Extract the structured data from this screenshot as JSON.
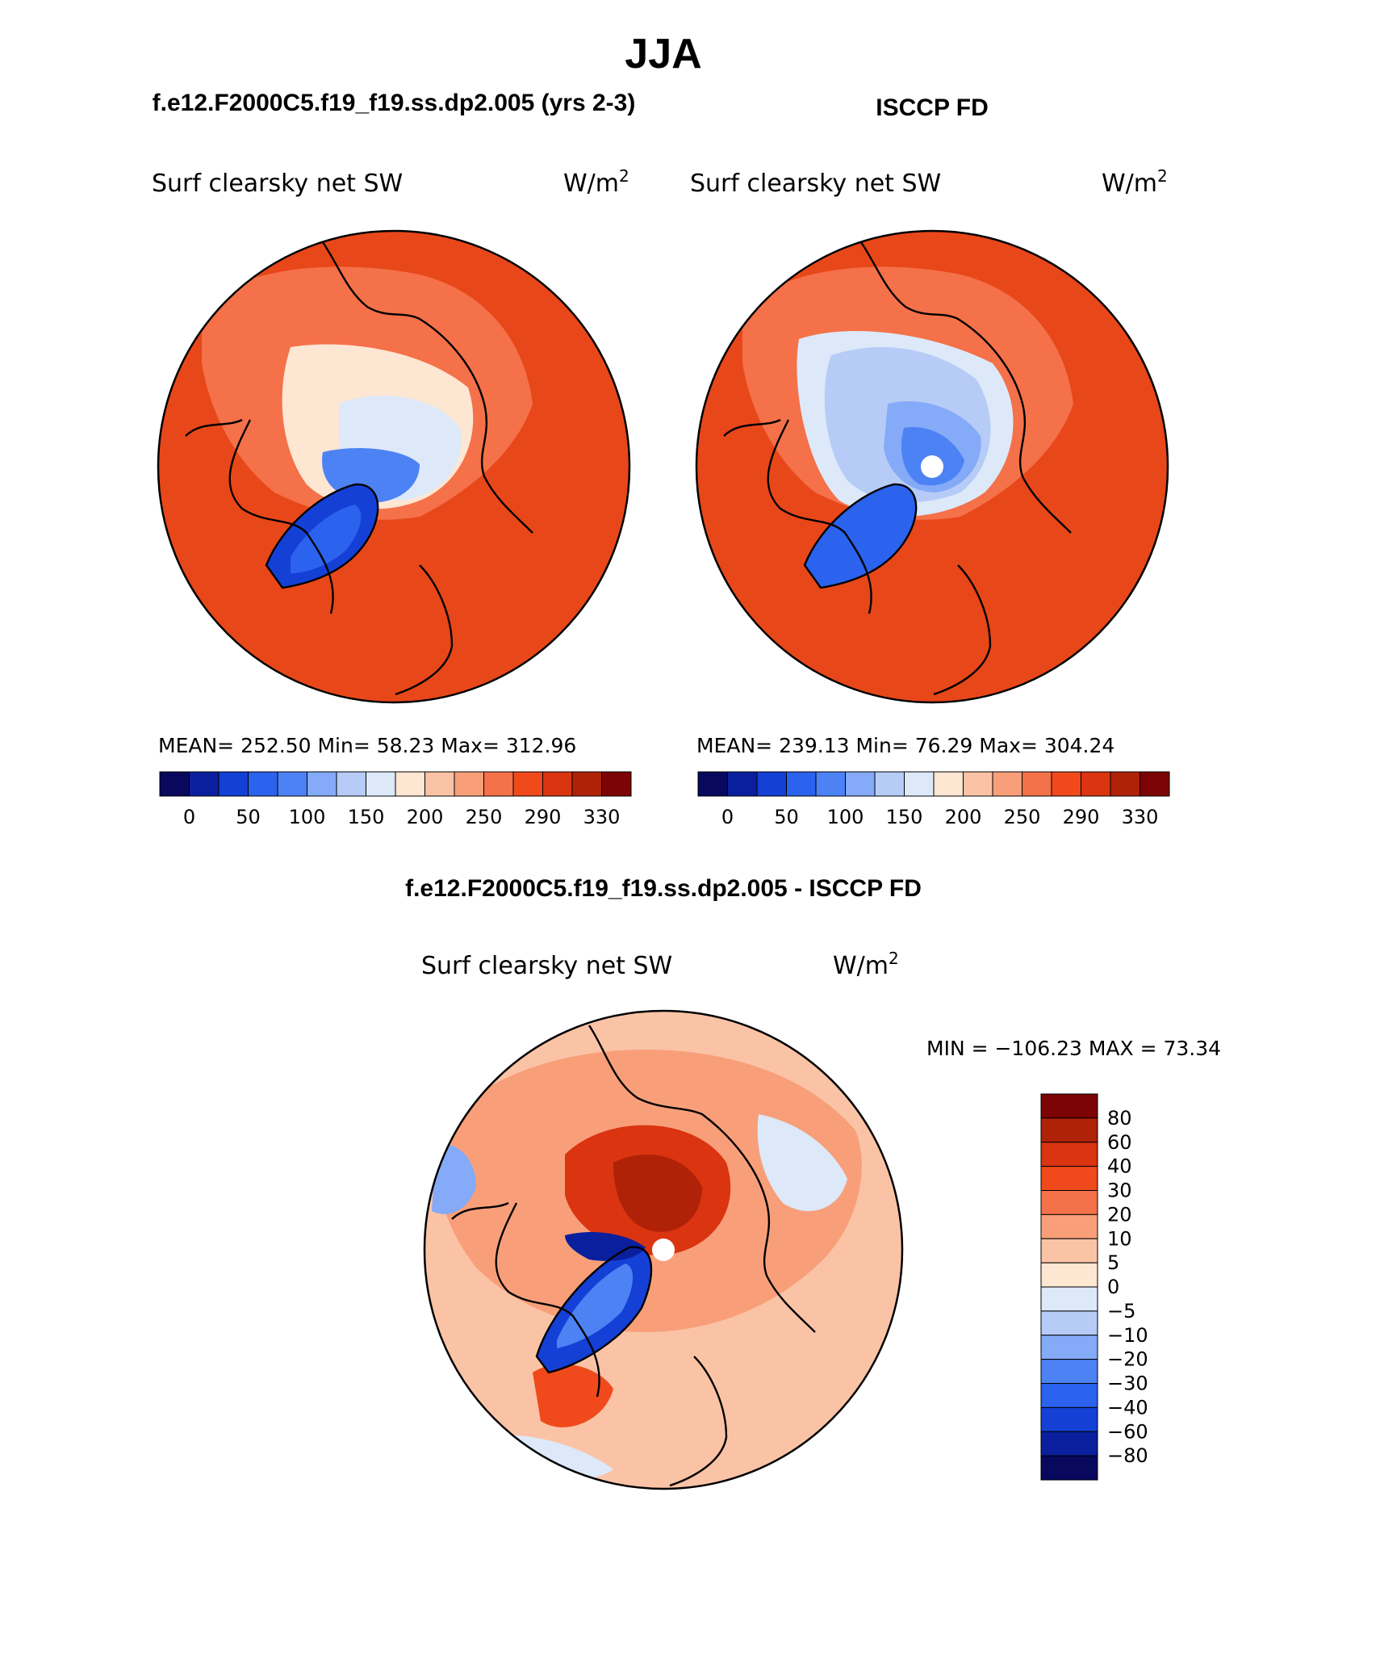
{
  "header": {
    "title": "JJA",
    "model_case": "f.e12.F2000C5.f19_f19.ss.dp2.005 (yrs 2-3)",
    "obs_case": "ISCCP FD",
    "diff_case": "f.e12.F2000C5.f19_f19.ss.dp2.005 - ISCCP FD"
  },
  "panels": [
    {
      "id": "model",
      "variable": "Surf clearsky net SW",
      "units": "W/m",
      "units_exp": "2",
      "stats": "MEAN= 252.50   Min=   58.23   Max= 312.96"
    },
    {
      "id": "obs",
      "variable": "Surf clearsky net SW",
      "units": "W/m",
      "units_exp": "2",
      "stats": "MEAN= 239.13   Min=   76.29   Max= 304.24"
    },
    {
      "id": "diff",
      "variable": "Surf clearsky net SW",
      "units": "W/m",
      "units_exp": "2",
      "stats": "MIN = −106.23 MAX =   73.34"
    }
  ],
  "colorbar_abs": {
    "colors": [
      "#08085e",
      "#0a1f9e",
      "#1440d6",
      "#2b62ee",
      "#4d82f5",
      "#84aaf8",
      "#b6ccf7",
      "#dde9f9",
      "#fde6d2",
      "#fbc3a6",
      "#f89f7a",
      "#f47149",
      "#f04a1c",
      "#da3410",
      "#b02208",
      "#7c0404"
    ],
    "labels": [
      "0",
      "50",
      "100",
      "150",
      "200",
      "250",
      "290",
      "330"
    ]
  },
  "colorbar_diff": {
    "colors": [
      "#7c0404",
      "#b02208",
      "#da3410",
      "#f04a1c",
      "#f47149",
      "#f89f7a",
      "#fbc3a6",
      "#fde6d2",
      "#dde9f9",
      "#b6ccf7",
      "#84aaf8",
      "#4d82f5",
      "#2b62ee",
      "#1440d6",
      "#0a1f9e",
      "#08085e"
    ],
    "labels": [
      "80",
      "60",
      "40",
      "30",
      "20",
      "10",
      "5",
      "0",
      "−5",
      "−10",
      "−20",
      "−30",
      "−40",
      "−60",
      "−80"
    ]
  }
}
